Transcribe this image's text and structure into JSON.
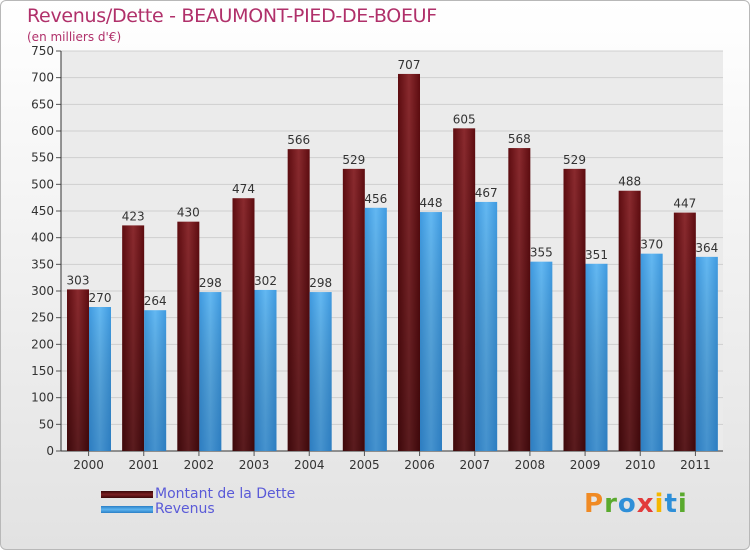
{
  "chart_data": {
    "type": "bar",
    "title": "Revenus/Dette - BEAUMONT-PIED-DE-BOEUF",
    "subtitle": "(en milliers d'€)",
    "categories": [
      "2000",
      "2001",
      "2002",
      "2003",
      "2004",
      "2005",
      "2006",
      "2007",
      "2008",
      "2009",
      "2010",
      "2011"
    ],
    "series": [
      {
        "name": "Montant de la Dette",
        "values": [
          303,
          423,
          430,
          474,
          566,
          529,
          707,
          605,
          568,
          529,
          488,
          447
        ],
        "color": "#7a1f22"
      },
      {
        "name": "Revenus",
        "values": [
          270,
          264,
          298,
          302,
          298,
          456,
          448,
          467,
          355,
          351,
          370,
          364
        ],
        "color": "#4da6e8"
      }
    ],
    "ylim": [
      0,
      750
    ],
    "yticks": [
      0,
      50,
      100,
      150,
      200,
      250,
      300,
      350,
      400,
      450,
      500,
      550,
      600,
      650,
      700,
      750
    ],
    "grid": true,
    "legend_position": "bottom-left"
  },
  "branding": {
    "logo_letters": [
      "P",
      "r",
      "o",
      "x",
      "i",
      "t",
      "i"
    ]
  }
}
